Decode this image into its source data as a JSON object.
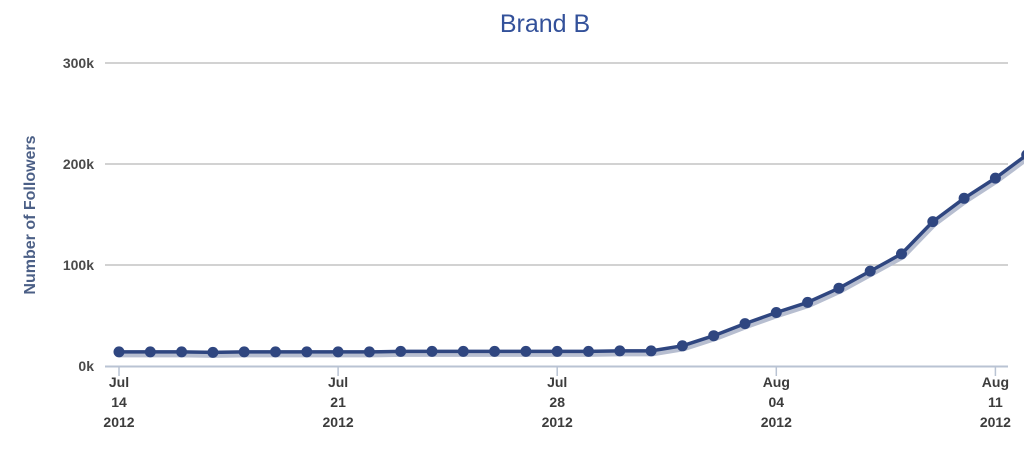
{
  "chart_data": {
    "type": "line",
    "title": "Brand B",
    "xlabel": "",
    "ylabel": "Number of Followers",
    "ylim": [
      0,
      300000
    ],
    "y_ticks": [
      {
        "value": 0,
        "label": "0k"
      },
      {
        "value": 100000,
        "label": "100k"
      },
      {
        "value": 200000,
        "label": "200k"
      },
      {
        "value": 300000,
        "label": "300k"
      }
    ],
    "x_ticks": [
      {
        "date": "2012-07-14",
        "lines": [
          "Jul",
          "14",
          "2012"
        ]
      },
      {
        "date": "2012-07-21",
        "lines": [
          "Jul",
          "21",
          "2012"
        ]
      },
      {
        "date": "2012-07-28",
        "lines": [
          "Jul",
          "28",
          "2012"
        ]
      },
      {
        "date": "2012-08-04",
        "lines": [
          "Aug",
          "04",
          "2012"
        ]
      },
      {
        "date": "2012-08-11",
        "lines": [
          "Aug",
          "11",
          "2012"
        ]
      }
    ],
    "grid": true,
    "legend": "none",
    "series": [
      {
        "color": "#2f4680",
        "points": [
          {
            "x": "2012-07-14",
            "y": 14000
          },
          {
            "x": "2012-07-15",
            "y": 14000
          },
          {
            "x": "2012-07-16",
            "y": 14000
          },
          {
            "x": "2012-07-17",
            "y": 13500
          },
          {
            "x": "2012-07-18",
            "y": 14000
          },
          {
            "x": "2012-07-19",
            "y": 14000
          },
          {
            "x": "2012-07-20",
            "y": 14000
          },
          {
            "x": "2012-07-21",
            "y": 14000
          },
          {
            "x": "2012-07-22",
            "y": 14000
          },
          {
            "x": "2012-07-23",
            "y": 14500
          },
          {
            "x": "2012-07-24",
            "y": 14500
          },
          {
            "x": "2012-07-25",
            "y": 14500
          },
          {
            "x": "2012-07-26",
            "y": 14500
          },
          {
            "x": "2012-07-27",
            "y": 14500
          },
          {
            "x": "2012-07-28",
            "y": 14500
          },
          {
            "x": "2012-07-29",
            "y": 14500
          },
          {
            "x": "2012-07-30",
            "y": 15000
          },
          {
            "x": "2012-07-31",
            "y": 15000
          },
          {
            "x": "2012-08-01",
            "y": 20000
          },
          {
            "x": "2012-08-02",
            "y": 30000
          },
          {
            "x": "2012-08-03",
            "y": 42000
          },
          {
            "x": "2012-08-04",
            "y": 53000
          },
          {
            "x": "2012-08-05",
            "y": 63000
          },
          {
            "x": "2012-08-06",
            "y": 77000
          },
          {
            "x": "2012-08-07",
            "y": 94000
          },
          {
            "x": "2012-08-08",
            "y": 111000
          },
          {
            "x": "2012-08-09",
            "y": 143000
          },
          {
            "x": "2012-08-10",
            "y": 166000
          },
          {
            "x": "2012-08-11",
            "y": 186000
          },
          {
            "x": "2012-08-12",
            "y": 209000
          }
        ]
      }
    ]
  }
}
